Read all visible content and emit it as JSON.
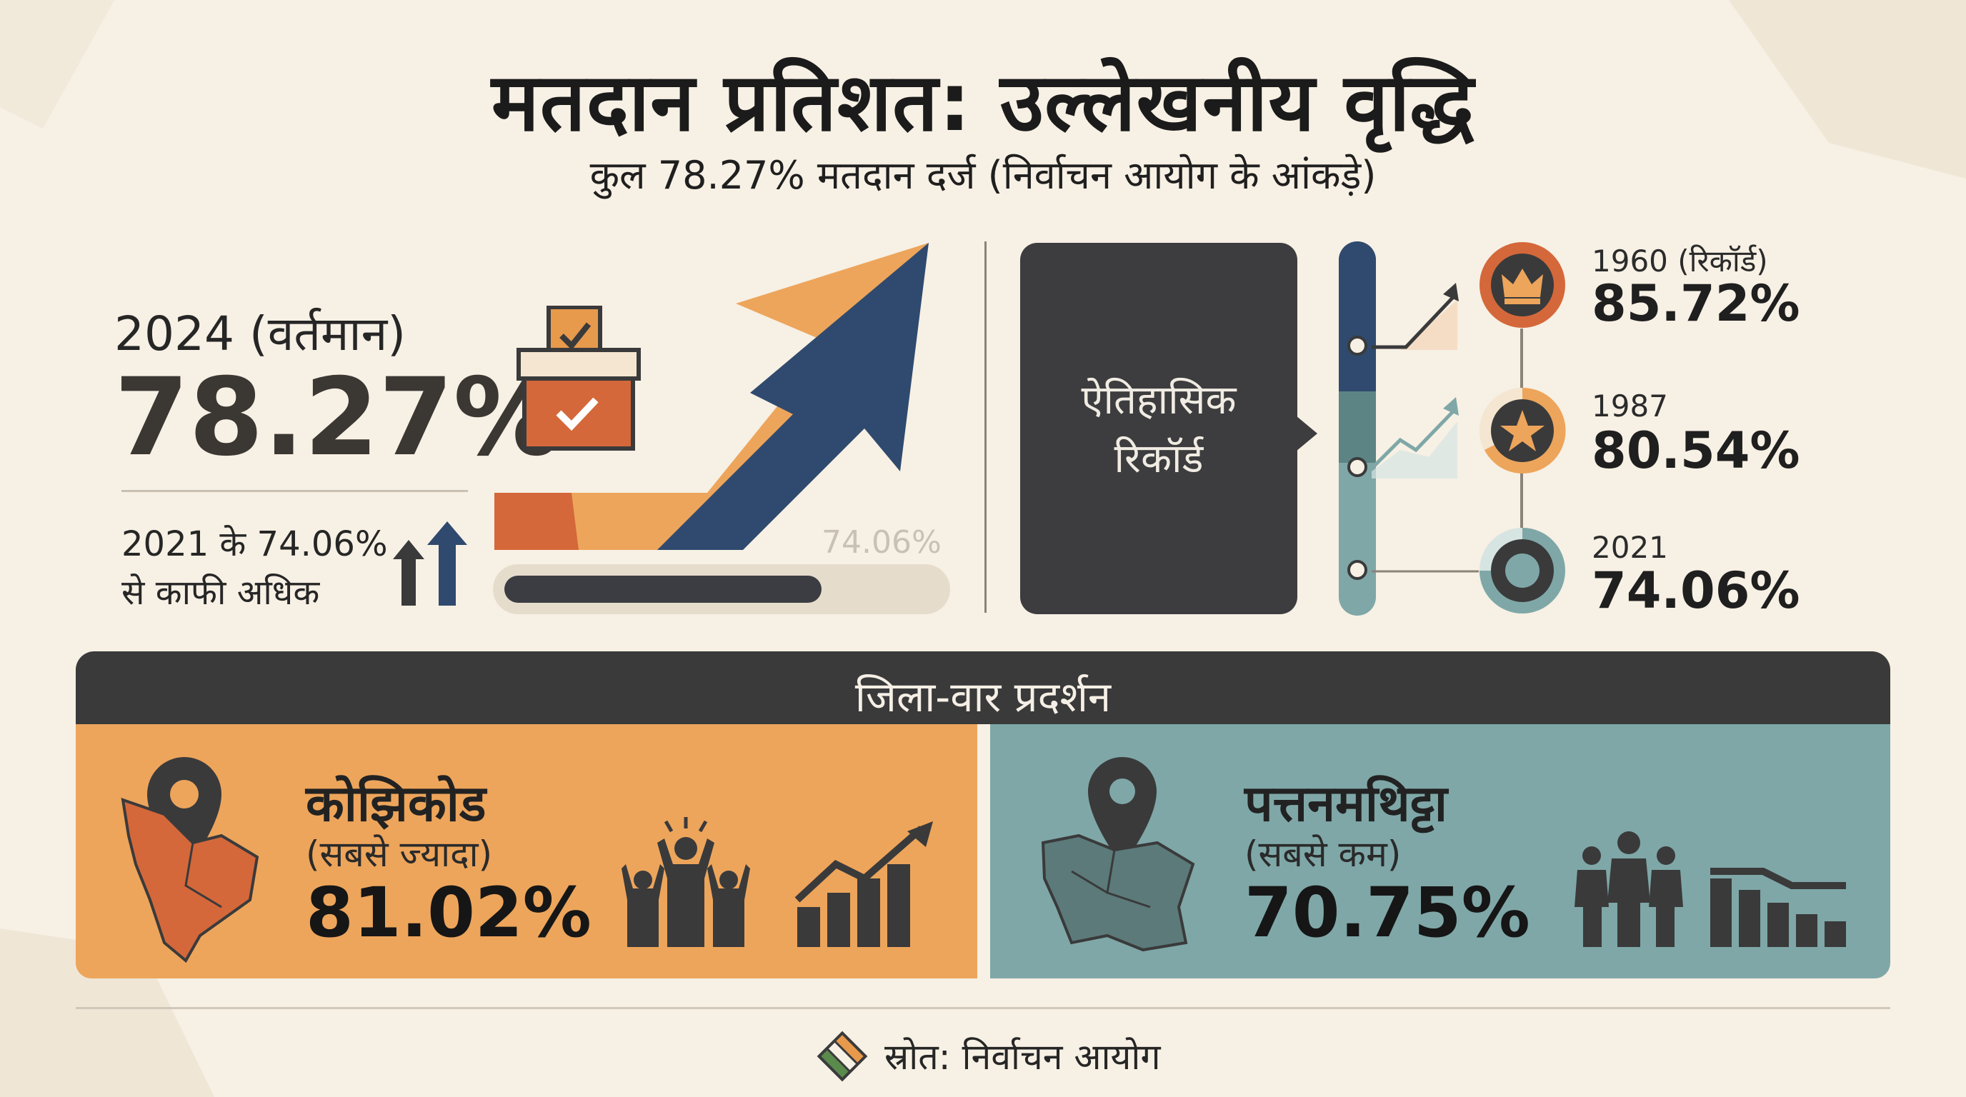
{
  "header": {
    "title": "मतदान प्रतिशत: उल्लेखनीय वृद्धि",
    "subtitle": "कुल 78.27% मतदान दर्ज (निर्वाचन आयोग के आंकड़े)"
  },
  "current": {
    "label": "2024 (वर्तमान)",
    "value": "78.27%",
    "comparison_line1": "2021 के 74.06%",
    "comparison_line2": "से काफी अधिक",
    "progress_label": "74.06%",
    "progress_fraction": 0.7406
  },
  "history": {
    "box_line1": "ऐतिहासिक",
    "box_line2": "रिकॉर्ड",
    "records": [
      {
        "year": "1960 (रिकॉर्ड)",
        "value": "85.72%",
        "icon": "crown-icon"
      },
      {
        "year": "1987",
        "value": "80.54%",
        "icon": "star-icon"
      },
      {
        "year": "2021",
        "value": "74.06%",
        "icon": "ring-icon"
      }
    ]
  },
  "districts": {
    "heading": "जिला-वार प्रदर्शन",
    "highest": {
      "name": "कोझिकोड",
      "note": "(सबसे ज्यादा)",
      "value": "81.02%",
      "color": "#eda55b"
    },
    "lowest": {
      "name": "पत्तनमथिट्टा",
      "note": "(सबसे कम)",
      "value": "70.75%",
      "color": "#7fa7a7"
    }
  },
  "footer": {
    "source": "स्रोत: निर्वाचन आयोग"
  },
  "colors": {
    "orange": "#eda55b",
    "dark_orange": "#d4683a",
    "navy": "#2f4a6e",
    "teal": "#7fa7a7",
    "dark": "#3a3a3b",
    "background": "#f7f0e4"
  }
}
